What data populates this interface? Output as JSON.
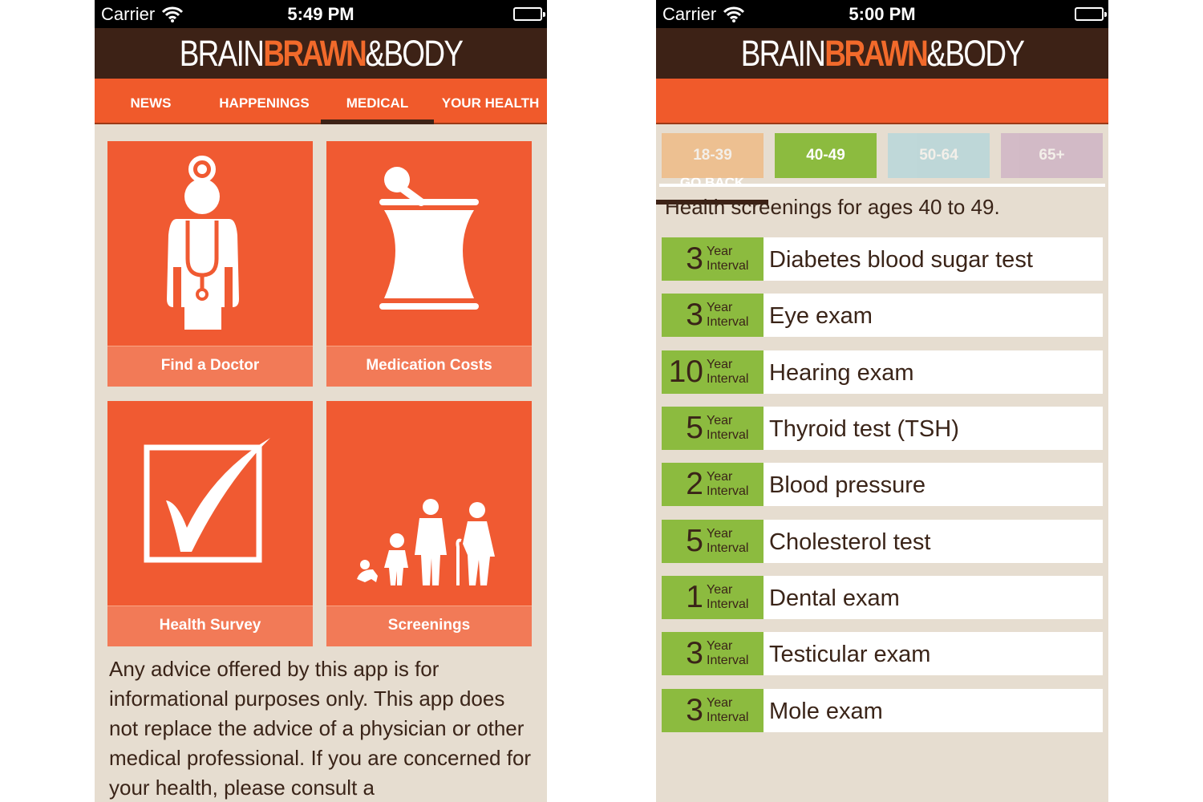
{
  "left_screen": {
    "status": {
      "carrier": "Carrier",
      "time": "5:49 PM"
    },
    "logo": {
      "part1": "BRAIN",
      "part2": "BRAWN",
      "part3": "&BODY"
    },
    "nav": [
      {
        "label": "NEWS"
      },
      {
        "label": "HAPPENINGS"
      },
      {
        "label": "MEDICAL",
        "active": true
      },
      {
        "label": "YOUR HEALTH"
      }
    ],
    "tiles": [
      {
        "label": "Find a Doctor",
        "icon": "doctor-icon"
      },
      {
        "label": "Medication Costs",
        "icon": "mortar-pestle-icon"
      },
      {
        "label": "Health Survey",
        "icon": "checkbox-icon"
      },
      {
        "label": "Screenings",
        "icon": "family-ages-icon"
      }
    ],
    "disclaimer": "Any advice offered by this app is for informational purposes only. This app does not replace the advice of a physician or other medical professional. If you are concerned for your health, please consult a"
  },
  "right_screen": {
    "status": {
      "carrier": "Carrier",
      "time": "5:00 PM"
    },
    "logo": {
      "part1": "BRAIN",
      "part2": "BRAWN",
      "part3": "&BODY"
    },
    "go_back": "GO BACK",
    "age_tabs": [
      {
        "label": "18-39",
        "color": "#f4a95f",
        "selected": false
      },
      {
        "label": "40-49",
        "color": "#8cbb3f",
        "selected": true
      },
      {
        "label": "50-64",
        "color": "#9fd3e0",
        "selected": false
      },
      {
        "label": "65+",
        "color": "#c39fbf",
        "selected": false
      }
    ],
    "title": "Health screenings for ages 40 to 49.",
    "screenings": [
      {
        "interval": "3",
        "unit1": "Year",
        "unit2": "Interval",
        "name": "Diabetes blood sugar test"
      },
      {
        "interval": "3",
        "unit1": "Year",
        "unit2": "Interval",
        "name": "Eye exam"
      },
      {
        "interval": "10",
        "unit1": "Year",
        "unit2": "Interval",
        "name": "Hearing exam"
      },
      {
        "interval": "5",
        "unit1": "Year",
        "unit2": "Interval",
        "name": "Thyroid test (TSH)"
      },
      {
        "interval": "2",
        "unit1": "Year",
        "unit2": "Interval",
        "name": "Blood pressure"
      },
      {
        "interval": "5",
        "unit1": "Year",
        "unit2": "Interval",
        "name": "Cholesterol test"
      },
      {
        "interval": "1",
        "unit1": "Year",
        "unit2": "Interval",
        "name": "Dental exam"
      },
      {
        "interval": "3",
        "unit1": "Year",
        "unit2": "Interval",
        "name": "Testicular exam"
      },
      {
        "interval": "3",
        "unit1": "Year",
        "unit2": "Interval",
        "name": "Mole exam"
      }
    ]
  },
  "colors": {
    "brand_orange": "#f05a2b",
    "header_brown": "#3d2216",
    "background_beige": "#e6ddd0",
    "interval_green": "#8cbb3f"
  }
}
